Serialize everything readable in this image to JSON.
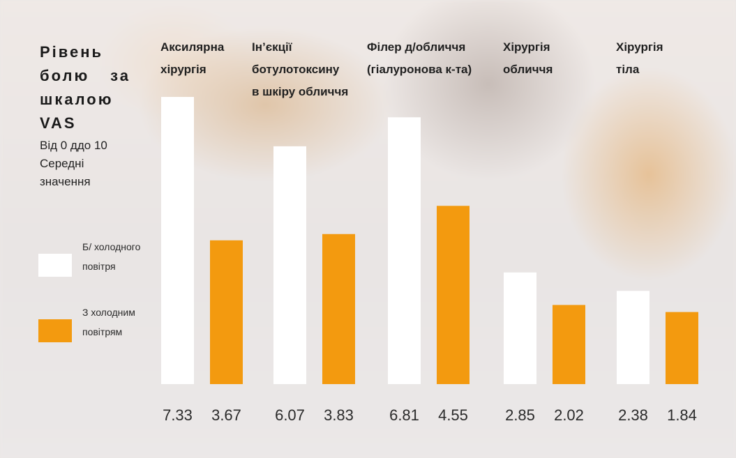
{
  "title": "Рівень болю за шкалою VAS",
  "subtitle": "Від 0 ддо 10 Середні значення",
  "legend": [
    {
      "label": "Б/ холодного повітря",
      "color": "#ffffff"
    },
    {
      "label": "З холодним повітрям",
      "color": "#f39a0f"
    }
  ],
  "chart_data": {
    "type": "bar",
    "categories": [
      "Аксилярна хірургія",
      "Ін’єкції ботулотоксину в шкіру обличчя",
      "Філер д/обличчя (гіалуронова к-та)",
      "Хірургія обличчя",
      "Хірургія тіла"
    ],
    "series": [
      {
        "name": "Б/ холодного повітря",
        "color": "#ffffff",
        "values": [
          7.33,
          6.07,
          6.81,
          2.85,
          2.38
        ]
      },
      {
        "name": "З холодним повітрям",
        "color": "#f39a0f",
        "values": [
          3.67,
          3.83,
          4.55,
          2.02,
          1.84
        ]
      }
    ],
    "ylim": [
      0,
      10
    ],
    "grid": false,
    "legend_position": "left",
    "value_labels": [
      "7.33",
      "3.67",
      "6.07",
      "3.83",
      "6.81",
      "4.55",
      "2.85",
      "2.02",
      "2.38",
      "1.84"
    ]
  }
}
